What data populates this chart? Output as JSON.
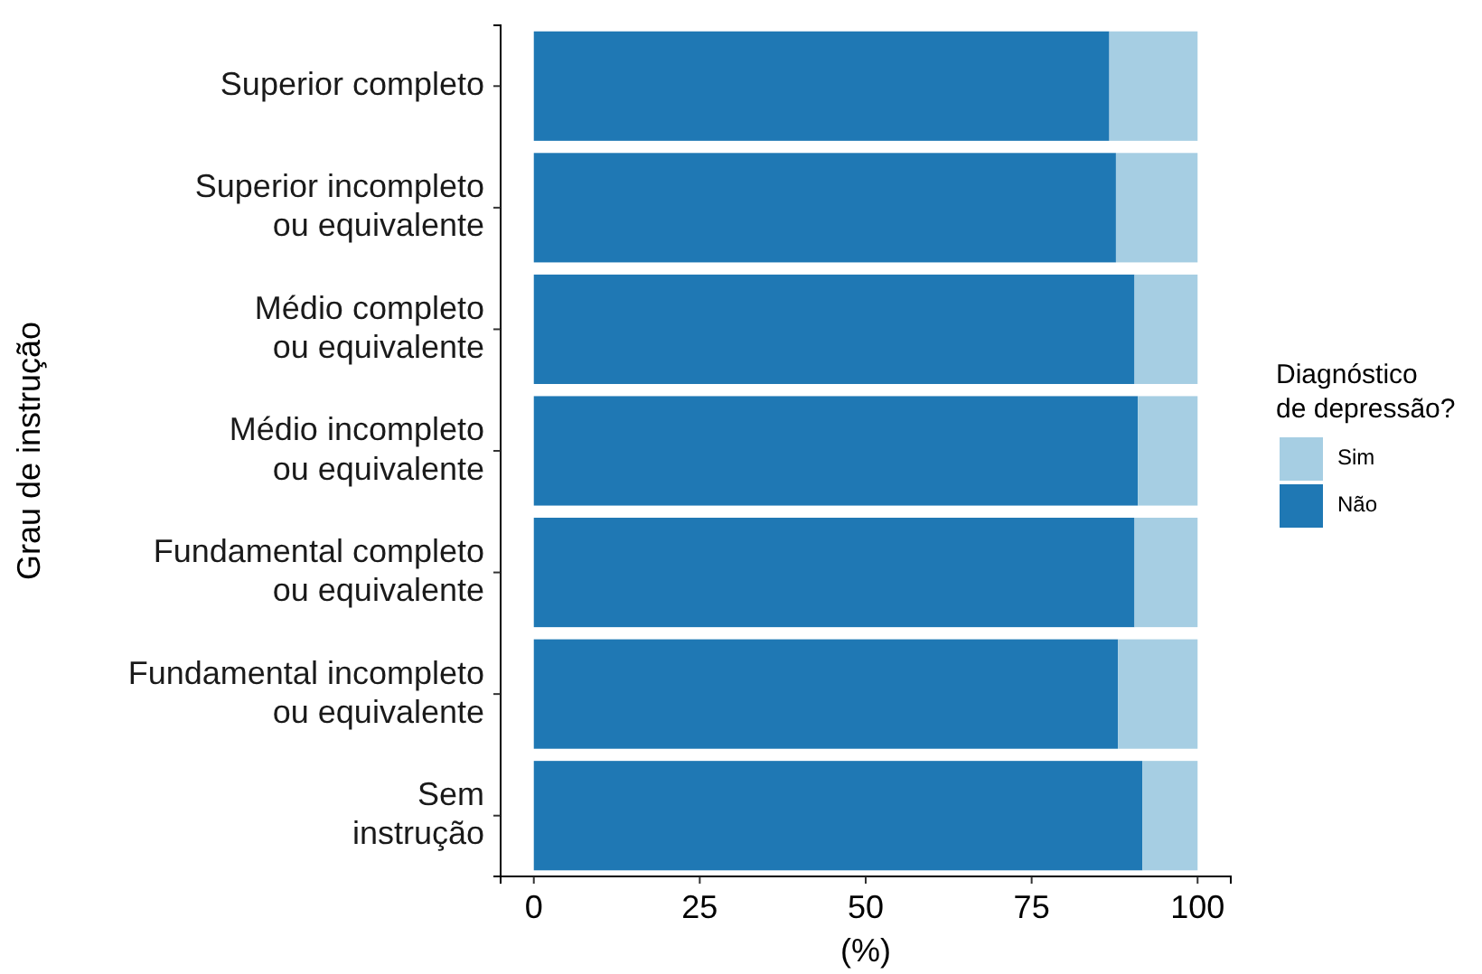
{
  "chart_data": {
    "type": "bar",
    "orientation": "horizontal",
    "stacked": true,
    "categories": [
      "Superior completo",
      "Superior incompleto\nou equivalente",
      "Médio completo\nou equivalente",
      "Médio incompleto\nou equivalente",
      "Fundamental completo\nou equivalente",
      "Fundamental incompleto\nou equivalente",
      "Sem\ninstrução"
    ],
    "series": [
      {
        "name": "Não",
        "color": "#1f78b4",
        "values": [
          86.7,
          87.7,
          90.5,
          91.0,
          90.5,
          88.0,
          91.7
        ]
      },
      {
        "name": "Sim",
        "color": "#a6cee3",
        "values": [
          13.3,
          12.3,
          9.5,
          9.0,
          9.5,
          12.0,
          8.3
        ]
      }
    ],
    "xlim": [
      -5,
      105
    ],
    "xticks": [
      0,
      25,
      50,
      75,
      100
    ],
    "xlabel": "(%)",
    "ylabel": "Grau de instrução",
    "legend_title": "Diagnóstico\nde depressão?",
    "legend": "right",
    "grid": false
  }
}
